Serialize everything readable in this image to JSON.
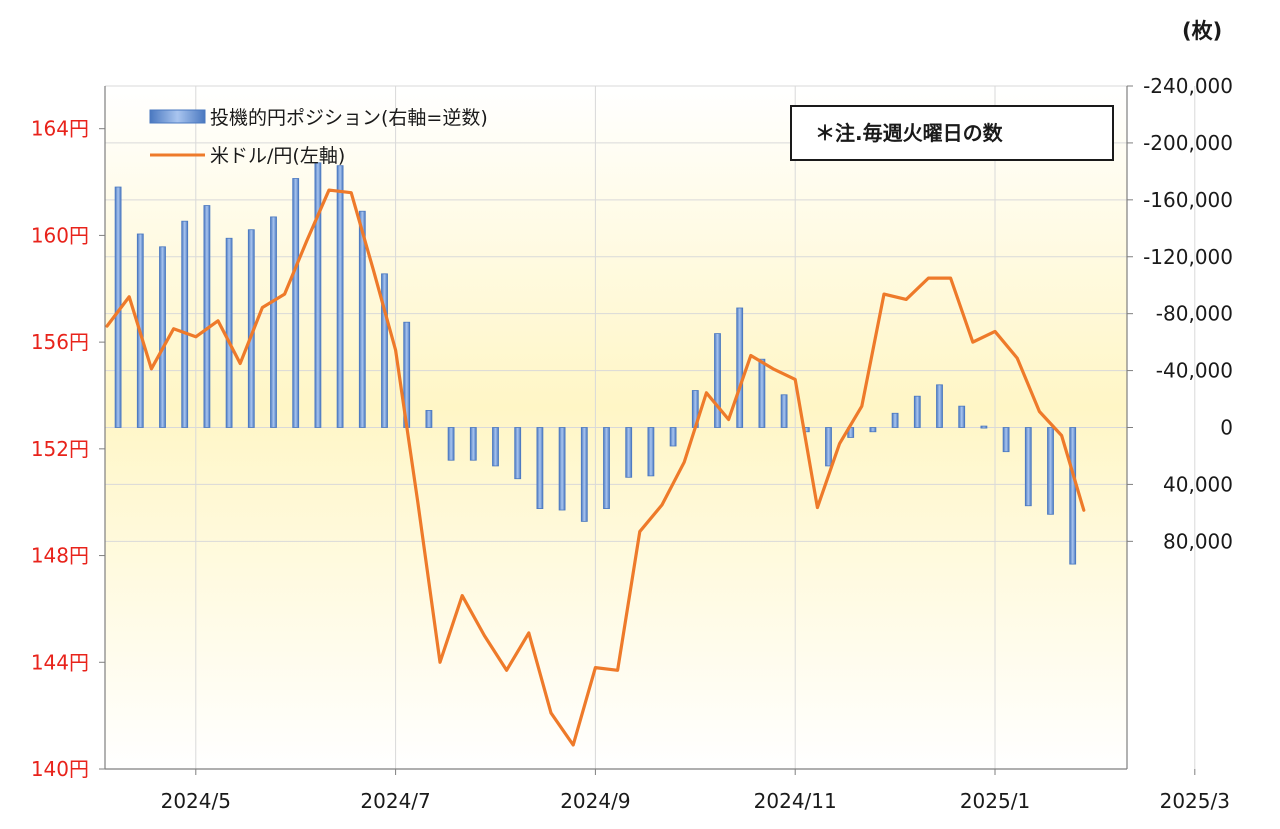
{
  "chart_data": {
    "type": "bar+line",
    "x_ticks": [
      "2024/5",
      "2024/7",
      "2024/9",
      "2024/11",
      "2025/1",
      "2025/3"
    ],
    "left_axis": {
      "ticks": [
        "164円",
        "160円",
        "156円",
        "152円",
        "148円",
        "144円",
        "140円"
      ],
      "min": 140,
      "max": 165.6,
      "color": "#e8231b"
    },
    "right_axis": {
      "unit": "(枚)",
      "ticks": [
        "-240,000",
        "-200,000",
        "-160,000",
        "-120,000",
        "-80,000",
        "-40,000",
        "0",
        "40,000",
        "80,000"
      ],
      "min": 240000,
      "max": -240000,
      "reversed": true
    },
    "legend": {
      "bar_label": "投機的円ポジション(右軸=逆数)",
      "line_label": "米ドル/円(左軸)"
    },
    "note": "＊注.毎週火曜日の数",
    "colors": {
      "bar": "#8fb1e3",
      "bar_edge": "#4a78c0",
      "line": "#ee7a2a",
      "left_axis": "#e8231b"
    },
    "series": [
      {
        "name": "投機的円ポジション(右軸=逆数)",
        "axis": "right",
        "kind": "bar",
        "values": [
          -169000,
          -136000,
          -127000,
          -145000,
          -156000,
          -133000,
          -139000,
          -148000,
          -175000,
          -186000,
          -184000,
          -152000,
          -108000,
          -74000,
          -12000,
          23000,
          23000,
          27000,
          36000,
          57000,
          58000,
          66000,
          57000,
          35000,
          34000,
          13000,
          -26000,
          -66000,
          -84000,
          -48000,
          -23000,
          3000,
          27000,
          7000,
          3000,
          -10000,
          -22000,
          -30000,
          -15000,
          -1000,
          17000,
          55000,
          61000,
          96000
        ]
      },
      {
        "name": "米ドル/円(左軸)",
        "axis": "left",
        "kind": "line",
        "values": [
          156.6,
          157.7,
          155.0,
          156.5,
          156.2,
          156.8,
          155.2,
          157.3,
          157.8,
          159.8,
          161.7,
          161.6,
          158.7,
          155.7,
          150.0,
          144.0,
          146.5,
          145.0,
          143.7,
          145.1,
          142.1,
          140.9,
          143.8,
          143.7,
          148.9,
          149.9,
          151.5,
          154.1,
          153.1,
          155.5,
          155.0,
          154.6,
          149.8,
          152.2,
          153.6,
          157.8,
          157.6,
          158.4,
          158.4,
          156.0,
          156.4,
          155.4,
          153.4,
          152.5,
          149.7
        ]
      }
    ]
  }
}
